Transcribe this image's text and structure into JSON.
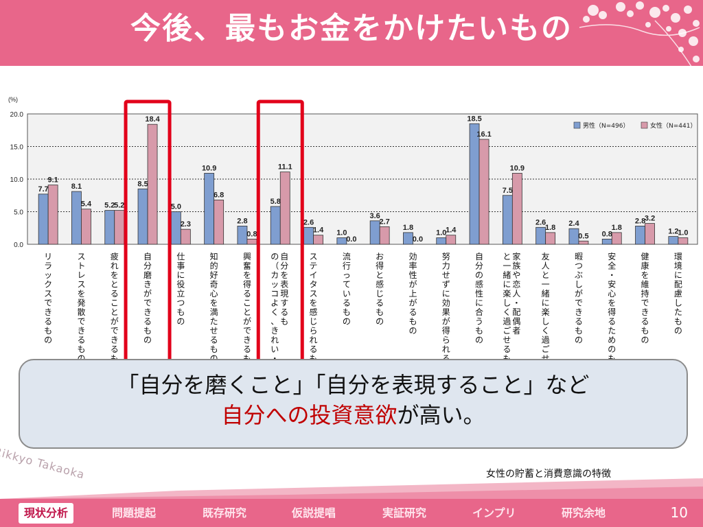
{
  "slide": {
    "title": "今後、最もお金をかけたいもの",
    "watermark": "Rikkyo Takaoka",
    "source": "女性の貯蓄と消費意識の特徴",
    "page_number": "10"
  },
  "callout": {
    "line1": "「自分を磨くこと」「自分を表現すること」など",
    "line2_highlight": "自分への投資意欲",
    "line2_rest": "が高い。"
  },
  "nav": {
    "tabs": [
      "現状分析",
      "問題提起",
      "既存研究",
      "仮説提唱",
      "実証研究",
      "インプリ",
      "研究余地"
    ],
    "active": "現状分析"
  },
  "colors": {
    "header": "#e8668a",
    "male_bar": "#7f9ed0",
    "female_bar": "#d79aaa",
    "highlight_box": "#e2001a",
    "callout_bg": "#dfe6ef"
  },
  "chart_data": {
    "type": "bar",
    "unit_label": "(%)",
    "ylim": [
      0,
      20
    ],
    "yticks": [
      "20.0",
      "15.0",
      "10.0",
      "5.0",
      "0.0"
    ],
    "grid": true,
    "legend_position": "top-right",
    "series": [
      {
        "name": "男性（N=496）",
        "values": [
          7.7,
          8.1,
          5.2,
          8.5,
          5.0,
          10.9,
          2.8,
          5.8,
          2.6,
          1.0,
          3.6,
          1.8,
          1.0,
          18.5,
          7.5,
          2.6,
          2.4,
          0.8,
          2.8,
          1.2
        ]
      },
      {
        "name": "女性（N=441）",
        "values": [
          9.1,
          5.4,
          5.2,
          18.4,
          2.3,
          6.8,
          0.8,
          11.1,
          1.4,
          0.0,
          2.7,
          0.0,
          1.4,
          16.1,
          10.9,
          1.8,
          0.5,
          1.8,
          3.2,
          1.0
        ]
      }
    ],
    "value_labels_male": [
      "7.7",
      "8.1",
      "5.2",
      "8.5",
      "5.0",
      "10.9",
      "2.8",
      "5.8",
      "2.6",
      "1.0",
      "3.6",
      "1.8",
      "1.0",
      "18.5",
      "7.5",
      "2.6",
      "2.4",
      "0.8",
      "2.8",
      "1.2"
    ],
    "value_labels_female": [
      "9.1",
      "5.4",
      "5.2",
      "18.4",
      "2.3",
      "6.8",
      "0.8",
      "11.1",
      "1.4",
      "0.0",
      "2.7",
      "0.0",
      "1.4",
      "16.1",
      "10.9",
      "1.8",
      "0.5",
      "1.8",
      "3.2",
      "1.0"
    ],
    "categories": [
      "リラックスできるもの",
      "ストレスを発散できるもの",
      "疲れをとることができるもの",
      "自分磨きができるもの",
      "仕事に役立つもの",
      "知的好奇心を満たせるもの",
      "興奮を得ることができるもの",
      "自分を表現するもの（カッコよく、きれい・かわいく）",
      "ステイタスを感じられるもの",
      "流行っているもの",
      "お得と感じるもの",
      "効率性が上がるもの",
      "努力せずに効果が得られるもの",
      "自分の感性に合うもの",
      "家族や恋人・配偶者と一緒に楽しく過ごせるもの",
      "友人と一緒に楽しく過ごせるもの",
      "暇つぶしができるもの",
      "安全・安心を得るためのもの",
      "健康を維持できるもの",
      "環境に配慮したもの"
    ],
    "highlighted_categories": [
      "自分磨きができるもの",
      "自分を表現するもの（カッコよく、きれい・かわいく）"
    ]
  }
}
